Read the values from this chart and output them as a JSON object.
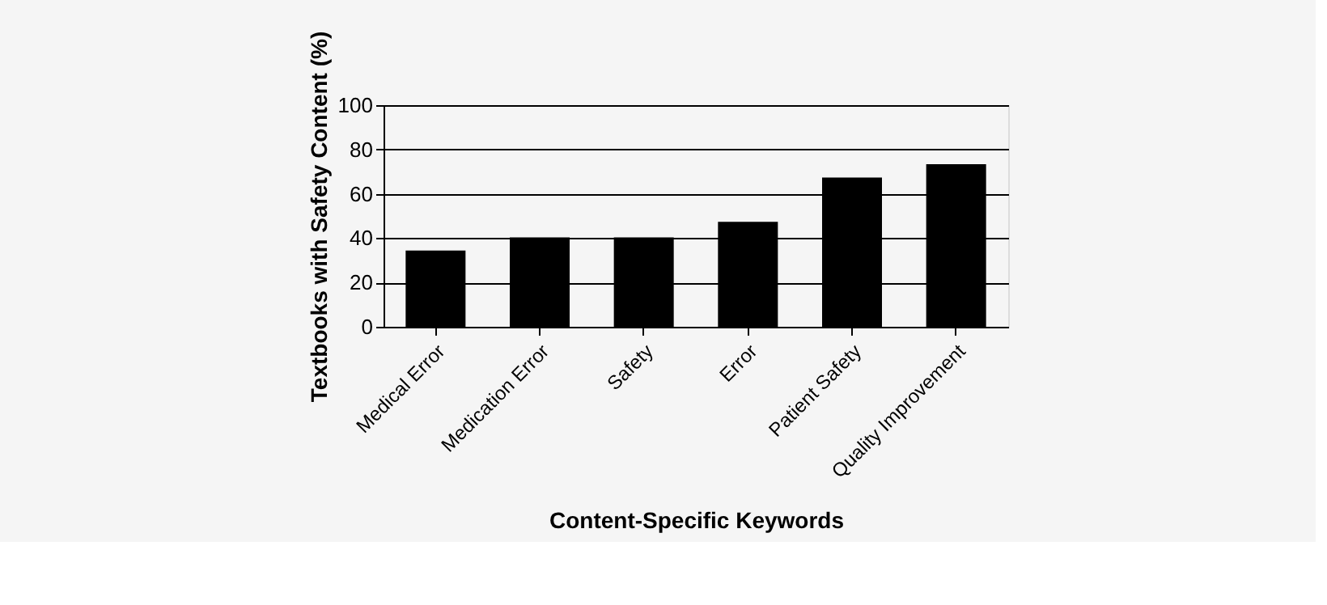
{
  "chart_data": {
    "type": "bar",
    "xlabel": "Content-Specific Keywords",
    "ylabel": "Textbooks with Safety Content (%)",
    "categories": [
      "Medical Error",
      "Medication Error",
      "Safety",
      "Error",
      "Patient Safety",
      "Quality Improvement"
    ],
    "values": [
      34,
      40,
      40,
      47,
      67,
      73
    ],
    "color": "#000000",
    "ylim": [
      0,
      100
    ],
    "yticks": [
      0,
      20,
      40,
      60,
      80,
      100
    ],
    "grid": "y"
  }
}
